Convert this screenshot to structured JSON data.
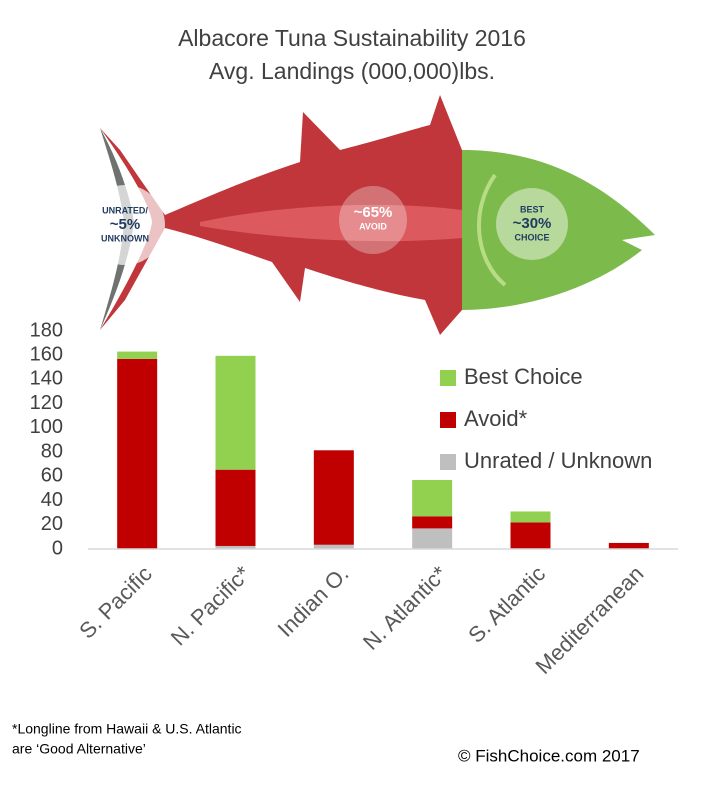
{
  "chart_data": {
    "type": "bar",
    "stacked": true,
    "title": "Albacore Tuna Sustainability 2016",
    "subtitle": "Avg. Landings (000,000)lbs.",
    "categories": [
      "S. Pacific",
      "N. Pacific*",
      "Indian O.",
      "N. Atlantic*",
      "S. Atlantic",
      "Mediterranean"
    ],
    "series": [
      {
        "name": "Best Choice",
        "color": "#92d050",
        "values": [
          6,
          94,
          0,
          30,
          9,
          0
        ]
      },
      {
        "name": "Avoid*",
        "color": "#c00000",
        "values": [
          157,
          63,
          78,
          10,
          22,
          5
        ]
      },
      {
        "name": "Unrated / Unknown",
        "color": "#bfbfbf",
        "values": [
          0,
          2.5,
          3.5,
          17,
          0,
          0
        ]
      }
    ],
    "ylim": [
      0,
      180
    ],
    "yticks": [
      0,
      20,
      40,
      60,
      80,
      100,
      120,
      140,
      160,
      180
    ],
    "grid": false,
    "legend": "right",
    "annotations": [
      [
        "UNRATED/",
        "~5%",
        "UNKNOWN"
      ],
      [
        "~65%",
        "AVOID"
      ],
      [
        "BEST",
        "~30%",
        "CHOICE"
      ]
    ],
    "footnote": [
      "*Longline from Hawaii & U.S. Atlantic",
      "are ‘Good Alternative’"
    ],
    "credit": "© FishChoice.com 2017"
  }
}
